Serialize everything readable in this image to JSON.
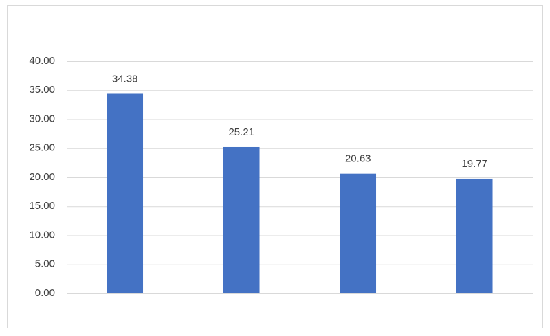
{
  "chart_data": {
    "type": "bar",
    "categories": [
      null,
      null,
      null,
      null
    ],
    "values": [
      34.38,
      25.21,
      20.63,
      19.77
    ],
    "color": "#4472c4",
    "ylim": [
      0,
      40
    ],
    "yticks": [
      {
        "value": 0,
        "label": "0.00"
      },
      {
        "value": 5,
        "label": "5.00"
      },
      {
        "value": 10,
        "label": "10.00"
      },
      {
        "value": 15,
        "label": "15.00"
      },
      {
        "value": 20,
        "label": "20.00"
      },
      {
        "value": 25,
        "label": "25.00"
      },
      {
        "value": 30,
        "label": "30.00"
      },
      {
        "value": 35,
        "label": "35.00"
      },
      {
        "value": 40,
        "label": "40.00"
      }
    ],
    "grid": true
  }
}
